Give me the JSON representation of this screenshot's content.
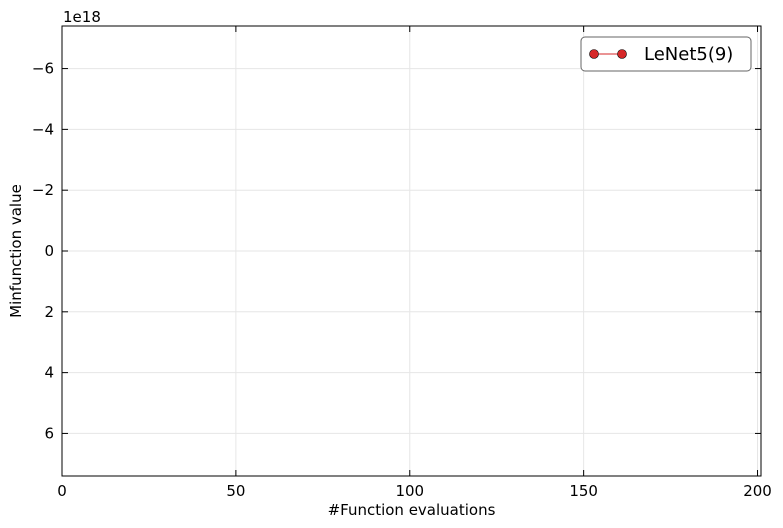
{
  "chart_data": {
    "type": "line",
    "title": "",
    "xlabel": "#Function evaluations",
    "ylabel": "Minfunction value",
    "y_offset_label": "1e18",
    "xlim": [
      0,
      201
    ],
    "ylim": [
      7.4,
      -7.4
    ],
    "y_inverted": true,
    "x_ticks": [
      0,
      50,
      100,
      150,
      200
    ],
    "x_tick_labels": [
      "0",
      "50",
      "100",
      "150",
      "200"
    ],
    "y_ticks": [
      -6,
      -4,
      -2,
      0,
      2,
      4,
      6
    ],
    "y_tick_labels": [
      "−6",
      "−4",
      "−2",
      "0",
      "2",
      "4",
      "6"
    ],
    "grid": true,
    "legend_position": "top-right",
    "series": [
      {
        "name": "LeNet5(9)",
        "color": "#d62728",
        "marker": "circle",
        "x": [],
        "y": []
      }
    ]
  }
}
